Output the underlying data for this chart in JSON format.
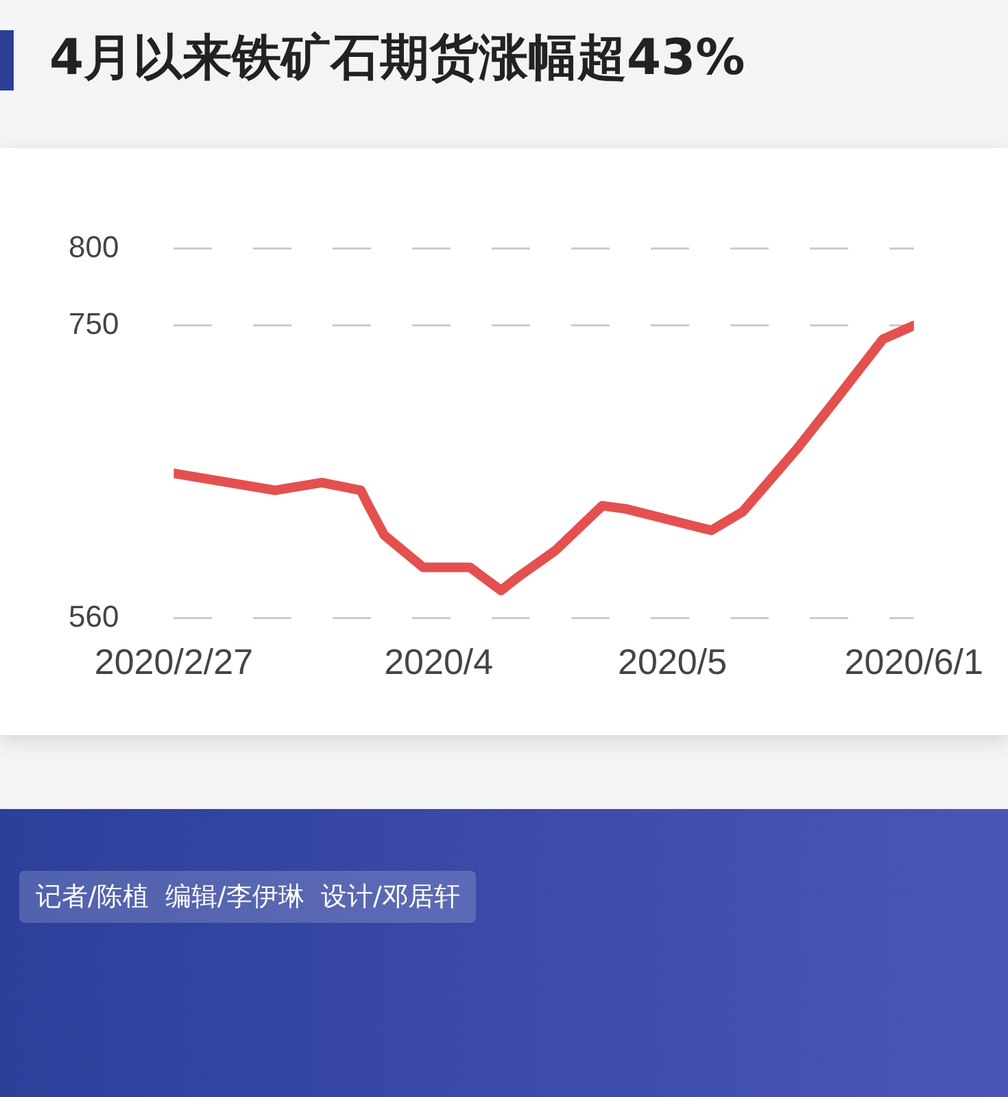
{
  "chart_data": {
    "type": "line",
    "title": "4月以来铁矿石期货涨幅超43%",
    "x": [
      "2020-02-27",
      "2020-03-11",
      "2020-03-17",
      "2020-03-22",
      "2020-03-23",
      "2020-03-25",
      "2020-03-30",
      "2020-04-05",
      "2020-04-09",
      "2020-04-11",
      "2020-04-16",
      "2020-04-22",
      "2020-04-25",
      "2020-05-06",
      "2020-05-10",
      "2020-05-17",
      "2020-05-22",
      "2020-05-28",
      "2020-06-01"
    ],
    "series": [
      {
        "color": "#e4504e",
        "values": [
          654,
          643,
          648,
          643,
          633,
          614,
          593,
          593,
          578,
          586,
          604,
          633,
          631,
          617,
          629,
          670,
          702,
          741,
          750
        ]
      }
    ],
    "xlim": [
      "2020-02-27",
      "2020-06-01"
    ],
    "xticks": [
      {
        "value": "2020-02-27",
        "label": "2020/2/27"
      },
      {
        "value": "2020-04-01",
        "label": "2020/4"
      },
      {
        "value": "2020-05-01",
        "label": "2020/5"
      },
      {
        "value": "2020-06-01",
        "label": "2020/6/1"
      }
    ],
    "ylim": [
      560,
      800
    ],
    "yticks": [
      560,
      750,
      800
    ],
    "grid": "y",
    "legend": false,
    "marker": "none",
    "line_style": "solid",
    "annotations": [
      "记者/陈植  编辑/李伊琳  设计/邓居轩"
    ]
  }
}
